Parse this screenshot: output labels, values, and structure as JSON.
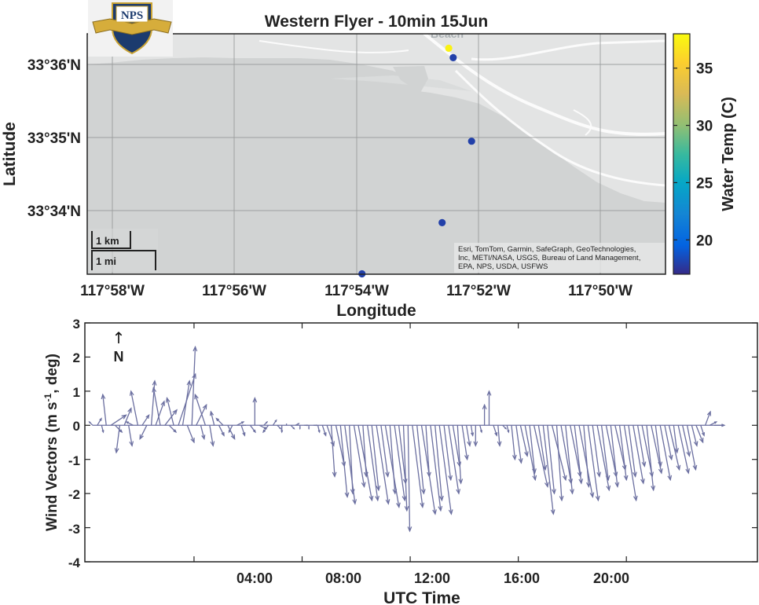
{
  "map": {
    "title": "Western Flyer - 10min 15Jun",
    "logo_text": "NPS",
    "basemap_place_label": "Beach",
    "xlabel": "Longitude",
    "ylabel": "Latitude",
    "x_ticks": [
      "117°58'W",
      "117°56'W",
      "117°54'W",
      "117°52'W",
      "117°50'W"
    ],
    "y_ticks": [
      "33°36'N",
      "33°35'N",
      "33°34'N"
    ],
    "scale_km": "1 km",
    "scale_mi": "1 mi",
    "attribution": [
      "Esri, TomTom, Garmin, SafeGraph, GeoTechnologies,",
      "Inc, METI/NASA, USGS, Bureau of Land Management,",
      "EPA, NPS, USDA, USFWS"
    ],
    "colorbar": {
      "label": "Water Temp (C)",
      "ticks": [
        "35",
        "30",
        "25",
        "20"
      ],
      "range": [
        17,
        38
      ]
    }
  },
  "wind": {
    "xlabel": "UTC Time",
    "ylabel_parts": [
      "Wind  Vectors  (m  s",
      "-1",
      ",  deg)"
    ],
    "north_arrow": "↑",
    "north_label": "N",
    "x_ticks": [
      "04:00",
      "08:00",
      "12:00",
      "16:00",
      "20:00"
    ],
    "y_ticks": [
      "3",
      "2",
      "1",
      "0",
      "-1",
      "-2",
      "-3",
      "-4"
    ]
  },
  "chart_data": [
    {
      "type": "scatter",
      "title": "Western Flyer - 10min 15Jun",
      "xlabel": "Longitude",
      "ylabel": "Latitude",
      "xlim": [
        -117.99,
        -117.8233
      ],
      "ylim": [
        33.5557,
        33.6121
      ],
      "grid": true,
      "colorbar_label": "Water Temp (C)",
      "color_range": [
        17,
        38
      ],
      "points": [
        {
          "lon": -117.8858,
          "lat": 33.6087,
          "temp": 37.5
        },
        {
          "lon": -117.8845,
          "lat": 33.6065,
          "temp": 18.0
        },
        {
          "lon": -117.8792,
          "lat": 33.5869,
          "temp": 18.0
        },
        {
          "lon": -117.8877,
          "lat": 33.5678,
          "temp": 18.0
        },
        {
          "lon": -117.9108,
          "lat": 33.5558,
          "temp": 18.0
        }
      ]
    },
    {
      "type": "quiver",
      "xlabel": "UTC Time",
      "ylabel": "Wind  Vectors  (m  s-1,  deg)",
      "xlim_hours": [
        -0.04,
        24.85
      ],
      "ylim": [
        -4,
        3
      ],
      "color": "#6b6fa0",
      "vectors": [
        {
          "t": 0.25,
          "u": -0.1,
          "v": 0.1
        },
        {
          "t": 0.42,
          "u": 0.12,
          "v": 0.2
        },
        {
          "t": 0.58,
          "u": 0.05,
          "v": -0.2
        },
        {
          "t": 0.75,
          "u": -0.1,
          "v": 0.9
        },
        {
          "t": 0.92,
          "u": 0.45,
          "v": 0.3
        },
        {
          "t": 1.08,
          "u": 0.2,
          "v": -0.2
        },
        {
          "t": 1.25,
          "u": -0.1,
          "v": -0.8
        },
        {
          "t": 1.42,
          "u": 0.2,
          "v": 0.5
        },
        {
          "t": 1.58,
          "u": 0.1,
          "v": -0.6
        },
        {
          "t": 1.75,
          "u": -0.2,
          "v": 0.1
        },
        {
          "t": 1.92,
          "u": -0.2,
          "v": 1.0
        },
        {
          "t": 2.08,
          "u": 0.2,
          "v": 0.3
        },
        {
          "t": 2.25,
          "u": -0.2,
          "v": -0.4
        },
        {
          "t": 2.42,
          "u": 0.1,
          "v": 1.3
        },
        {
          "t": 2.58,
          "u": 0.25,
          "v": 0.7
        },
        {
          "t": 2.75,
          "u": -0.2,
          "v": 1.1
        },
        {
          "t": 2.92,
          "u": 0.35,
          "v": 0.45
        },
        {
          "t": 3.08,
          "u": 0.2,
          "v": -0.2
        },
        {
          "t": 3.25,
          "u": -0.2,
          "v": 0.8
        },
        {
          "t": 3.42,
          "u": 0.5,
          "v": 1.5
        },
        {
          "t": 3.58,
          "u": 0.2,
          "v": 1.3
        },
        {
          "t": 3.75,
          "u": 0.2,
          "v": -0.5
        },
        {
          "t": 3.92,
          "u": 0.1,
          "v": 2.3
        },
        {
          "t": 4.08,
          "u": 0.3,
          "v": 0.6
        },
        {
          "t": 4.25,
          "u": 0.1,
          "v": -0.4
        },
        {
          "t": 4.42,
          "u": -0.3,
          "v": 0.9
        },
        {
          "t": 4.58,
          "u": 0.1,
          "v": -0.6
        },
        {
          "t": 4.75,
          "u": -0.1,
          "v": 0.4
        },
        {
          "t": 4.92,
          "u": 0.15,
          "v": -0.3
        },
        {
          "t": 5.08,
          "u": -0.2,
          "v": 0.2
        },
        {
          "t": 5.25,
          "u": 0.2,
          "v": -0.4
        },
        {
          "t": 5.42,
          "u": -0.1,
          "v": -0.2
        },
        {
          "t": 5.58,
          "u": 0.2,
          "v": 0.1
        },
        {
          "t": 5.75,
          "u": 0.1,
          "v": -0.3
        },
        {
          "t": 5.92,
          "u": -0.1,
          "v": 0.0
        },
        {
          "t": 6.08,
          "u": 0.15,
          "v": -0.2
        },
        {
          "t": 6.25,
          "u": 0.0,
          "v": 0.8
        },
        {
          "t": 6.42,
          "u": 0.2,
          "v": -0.1
        },
        {
          "t": 6.58,
          "u": 0.1,
          "v": 0.1
        },
        {
          "t": 6.75,
          "u": -0.15,
          "v": -0.2
        },
        {
          "t": 6.92,
          "u": 0.1,
          "v": 0.15
        },
        {
          "t": 7.08,
          "u": 0.1,
          "v": -0.1
        },
        {
          "t": 7.25,
          "u": 0.0,
          "v": -0.2
        },
        {
          "t": 7.42,
          "u": 0.0,
          "v": 0.05
        },
        {
          "t": 7.58,
          "u": 0.1,
          "v": -0.1
        },
        {
          "t": 7.75,
          "u": 0.1,
          "v": 0.05
        },
        {
          "t": 7.92,
          "u": 0.0,
          "v": -0.1
        },
        {
          "t": 8.08,
          "u": 0.1,
          "v": 0.0
        },
        {
          "t": 8.25,
          "u": 0.0,
          "v": -0.1
        },
        {
          "t": 8.42,
          "u": 0.1,
          "v": 0.0
        },
        {
          "t": 8.58,
          "u": 0.05,
          "v": -0.2
        },
        {
          "t": 8.75,
          "u": 0.1,
          "v": -0.3
        },
        {
          "t": 8.92,
          "u": 0.2,
          "v": -0.6
        },
        {
          "t": 9.08,
          "u": 0.1,
          "v": -1.5
        },
        {
          "t": 9.25,
          "u": 0.25,
          "v": -1.2
        },
        {
          "t": 9.42,
          "u": 0.2,
          "v": -2.1
        },
        {
          "t": 9.58,
          "u": 0.3,
          "v": -2.3
        },
        {
          "t": 9.75,
          "u": 0.1,
          "v": -2.0
        },
        {
          "t": 9.92,
          "u": 0.3,
          "v": -1.8
        },
        {
          "t": 10.08,
          "u": 0.4,
          "v": -2.2
        },
        {
          "t": 10.25,
          "u": 0.1,
          "v": -1.5
        },
        {
          "t": 10.42,
          "u": 0.3,
          "v": -2.2
        },
        {
          "t": 10.58,
          "u": 0.2,
          "v": -1.9
        },
        {
          "t": 10.75,
          "u": 0.35,
          "v": -2.3
        },
        {
          "t": 10.92,
          "u": 0.2,
          "v": -1.5
        },
        {
          "t": 11.08,
          "u": 0.4,
          "v": -2.4
        },
        {
          "t": 11.25,
          "u": 0.15,
          "v": -2.0
        },
        {
          "t": 11.42,
          "u": 0.3,
          "v": -2.2
        },
        {
          "t": 11.58,
          "u": 0.2,
          "v": -1.7
        },
        {
          "t": 11.75,
          "u": 0.1,
          "v": -2.5
        },
        {
          "t": 11.92,
          "u": 0.05,
          "v": -3.1
        },
        {
          "t": 12.08,
          "u": 0.3,
          "v": -2.4
        },
        {
          "t": 12.25,
          "u": 0.2,
          "v": -2.0
        },
        {
          "t": 12.42,
          "u": 0.4,
          "v": -2.6
        },
        {
          "t": 12.58,
          "u": 0.1,
          "v": -1.5
        },
        {
          "t": 12.75,
          "u": 0.3,
          "v": -2.5
        },
        {
          "t": 12.92,
          "u": 0.2,
          "v": -2.2
        },
        {
          "t": 13.08,
          "u": 0.35,
          "v": -2.6
        },
        {
          "t": 13.25,
          "u": 0.2,
          "v": -1.6
        },
        {
          "t": 13.42,
          "u": 0.3,
          "v": -2.0
        },
        {
          "t": 13.58,
          "u": 0.2,
          "v": -1.2
        },
        {
          "t": 13.75,
          "u": 0.1,
          "v": -1.7
        },
        {
          "t": 13.92,
          "u": 0.15,
          "v": -1.0
        },
        {
          "t": 14.08,
          "u": 0.1,
          "v": -0.6
        },
        {
          "t": 14.25,
          "u": 0.05,
          "v": -0.3
        },
        {
          "t": 14.42,
          "u": 0.0,
          "v": -0.6
        },
        {
          "t": 14.58,
          "u": 0.05,
          "v": -0.2
        },
        {
          "t": 14.75,
          "u": 0.0,
          "v": 0.6
        },
        {
          "t": 14.92,
          "u": 0.0,
          "v": 1.0
        },
        {
          "t": 15.08,
          "u": 0.1,
          "v": -0.3
        },
        {
          "t": 15.25,
          "u": 0.05,
          "v": -0.6
        },
        {
          "t": 15.42,
          "u": 0.1,
          "v": -0.1
        },
        {
          "t": 15.58,
          "u": 0.05,
          "v": -0.2
        },
        {
          "t": 15.75,
          "u": 0.1,
          "v": -1.0
        },
        {
          "t": 15.92,
          "u": 0.15,
          "v": -1.1
        },
        {
          "t": 16.08,
          "u": 0.2,
          "v": -0.9
        },
        {
          "t": 16.25,
          "u": 0.3,
          "v": -1.6
        },
        {
          "t": 16.42,
          "u": 0.15,
          "v": -1.4
        },
        {
          "t": 16.58,
          "u": 0.4,
          "v": -1.8
        },
        {
          "t": 16.75,
          "u": 0.2,
          "v": -1.3
        },
        {
          "t": 16.92,
          "u": 0.3,
          "v": -2.6
        },
        {
          "t": 17.08,
          "u": 0.2,
          "v": -2.0
        },
        {
          "t": 17.25,
          "u": 0.4,
          "v": -1.6
        },
        {
          "t": 17.42,
          "u": 0.15,
          "v": -2.2
        },
        {
          "t": 17.58,
          "u": 0.3,
          "v": -1.7
        },
        {
          "t": 17.75,
          "u": 0.2,
          "v": -2.0
        },
        {
          "t": 17.92,
          "u": 0.3,
          "v": -1.5
        },
        {
          "t": 18.08,
          "u": 0.2,
          "v": -1.7
        },
        {
          "t": 18.25,
          "u": 0.4,
          "v": -2.1
        },
        {
          "t": 18.42,
          "u": 0.15,
          "v": -1.8
        },
        {
          "t": 18.58,
          "u": 0.3,
          "v": -2.2
        },
        {
          "t": 18.75,
          "u": 0.2,
          "v": -1.5
        },
        {
          "t": 18.92,
          "u": 0.35,
          "v": -1.9
        },
        {
          "t": 19.08,
          "u": 0.2,
          "v": -1.6
        },
        {
          "t": 19.25,
          "u": 0.3,
          "v": -1.5
        },
        {
          "t": 19.42,
          "u": 0.2,
          "v": -1.8
        },
        {
          "t": 19.58,
          "u": 0.3,
          "v": -1.3
        },
        {
          "t": 19.75,
          "u": 0.2,
          "v": -1.6
        },
        {
          "t": 19.92,
          "u": 0.35,
          "v": -2.2
        },
        {
          "t": 20.08,
          "u": 0.2,
          "v": -1.5
        },
        {
          "t": 20.25,
          "u": 0.3,
          "v": -1.7
        },
        {
          "t": 20.42,
          "u": 0.2,
          "v": -1.2
        },
        {
          "t": 20.58,
          "u": 0.3,
          "v": -1.5
        },
        {
          "t": 20.75,
          "u": 0.2,
          "v": -1.9
        },
        {
          "t": 20.92,
          "u": 0.3,
          "v": -1.4
        },
        {
          "t": 21.08,
          "u": 0.15,
          "v": -1.2
        },
        {
          "t": 21.25,
          "u": 0.3,
          "v": -1.6
        },
        {
          "t": 21.42,
          "u": 0.2,
          "v": -1.0
        },
        {
          "t": 21.58,
          "u": 0.3,
          "v": -1.3
        },
        {
          "t": 21.75,
          "u": 0.1,
          "v": -0.8
        },
        {
          "t": 21.92,
          "u": 0.3,
          "v": -1.4
        },
        {
          "t": 22.08,
          "u": 0.2,
          "v": -0.9
        },
        {
          "t": 22.25,
          "u": 0.25,
          "v": -1.3
        },
        {
          "t": 22.42,
          "u": 0.15,
          "v": -0.6
        },
        {
          "t": 22.58,
          "u": 0.2,
          "v": -0.5
        },
        {
          "t": 22.75,
          "u": 0.1,
          "v": -0.3
        },
        {
          "t": 22.92,
          "u": 0.15,
          "v": 0.4
        },
        {
          "t": 23.08,
          "u": 0.2,
          "v": 0.1
        },
        {
          "t": 23.25,
          "u": 0.3,
          "v": 0.0
        }
      ]
    }
  ]
}
